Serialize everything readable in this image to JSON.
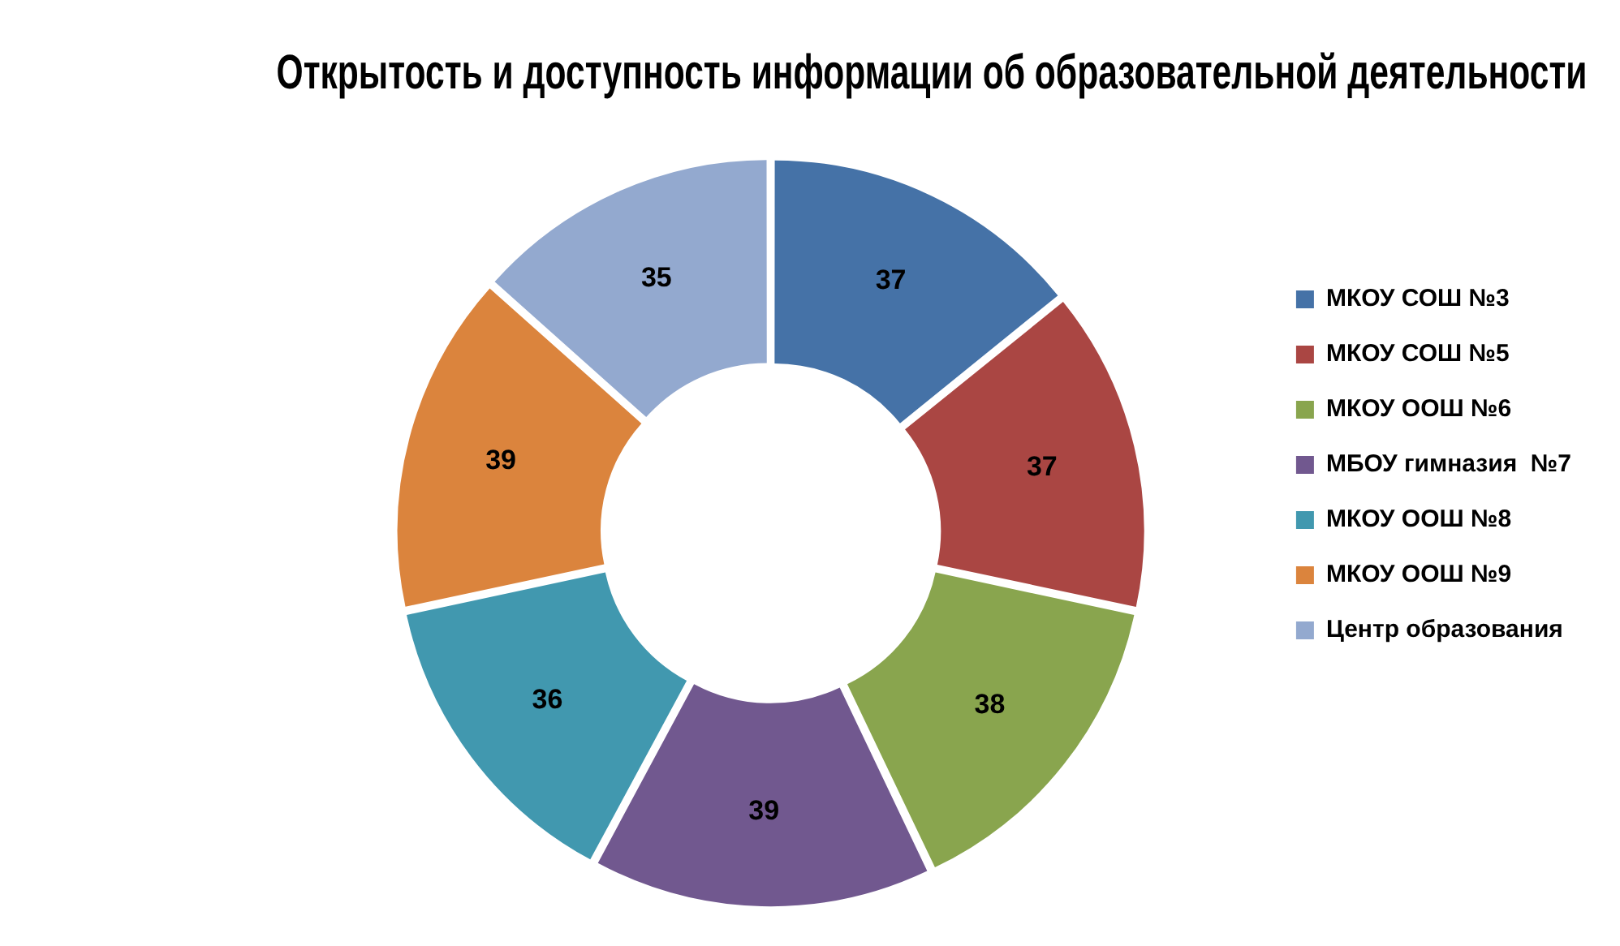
{
  "chart_data": {
    "type": "donut",
    "title": "Открытость и доступность информации об образовательной деятельности",
    "categories": [
      "МКОУ СОШ №3",
      "МКОУ СОШ №5",
      "МКОУ ООШ №6",
      "МБОУ гимназия  №7",
      "МКОУ ООШ №8",
      "МКОУ ООШ №9",
      "Центр образования"
    ],
    "values": [
      37,
      37,
      38,
      39,
      36,
      39,
      35
    ],
    "colors": [
      "#4572a7",
      "#aa4643",
      "#89a54e",
      "#71588f",
      "#4198af",
      "#db843d",
      "#93a9cf"
    ],
    "data_labels": true,
    "legend": "right"
  }
}
